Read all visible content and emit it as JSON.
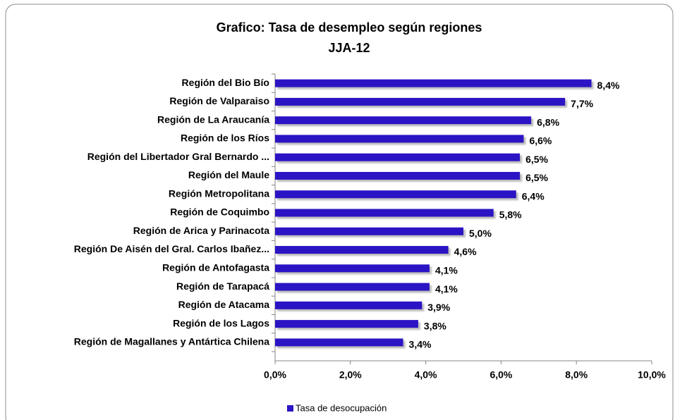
{
  "chart_data": {
    "type": "hbar",
    "title": "Grafico: Tasa de desempleo  según regiones",
    "subtitle": "JJA-12",
    "categories": [
      "Región del Bio Bío",
      "Región de Valparaiso",
      "Región de La Araucanía",
      "Región de los Ríos",
      "Región del Libertador Gral Bernardo ...",
      "Región del Maule",
      "Región Metropolitana",
      "Región de Coquimbo",
      "Región de Arica y Parinacota",
      "Región De Aisén del Gral. Carlos Ibañez...",
      "Región de Antofagasta",
      "Región de Tarapacá",
      "Región de Atacama",
      "Región de los Lagos",
      "Región de Magallanes  y Antártica Chilena"
    ],
    "series": [
      {
        "name": "Tasa de desocupación",
        "color": "#2b14c4",
        "values": [
          8.4,
          7.7,
          6.8,
          6.6,
          6.5,
          6.5,
          6.4,
          5.8,
          5.0,
          4.6,
          4.1,
          4.1,
          3.9,
          3.8,
          3.4
        ],
        "value_labels": [
          "8,4%",
          "7,7%",
          "6,8%",
          "6,6%",
          "6,5%",
          "6,5%",
          "6,4%",
          "5,8%",
          "5,0%",
          "4,6%",
          "4,1%",
          "4,1%",
          "3,9%",
          "3,8%",
          "3,4%"
        ]
      }
    ],
    "xlim": [
      0,
      10
    ],
    "xticks": [
      {
        "value": 0,
        "label": "0,0%"
      },
      {
        "value": 2,
        "label": "2,0%"
      },
      {
        "value": 4,
        "label": "4,0%"
      },
      {
        "value": 6,
        "label": "6,0%"
      },
      {
        "value": 8,
        "label": "8,0%"
      },
      {
        "value": 10,
        "label": "10,0%"
      }
    ],
    "legend": "bottom"
  }
}
